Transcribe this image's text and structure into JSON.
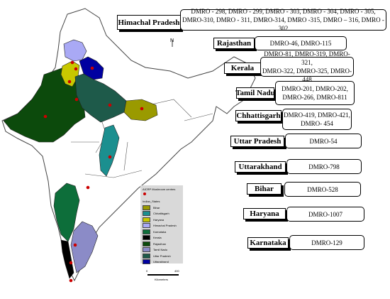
{
  "north_label": "N",
  "legend": {
    "centres_label": "AICRP Mushroom centres",
    "states_title": "Indian_States",
    "items": [
      {
        "name": "Bihar",
        "color": "#9a9a00"
      },
      {
        "name": "Chhattisgarh",
        "color": "#1b8f8f"
      },
      {
        "name": "Haryana",
        "color": "#c8c800"
      },
      {
        "name": "Himachal Pradesh",
        "color": "#a9a9f5"
      },
      {
        "name": "Karnataka",
        "color": "#0d6e3a"
      },
      {
        "name": "Kerala",
        "color": "#000000"
      },
      {
        "name": "Rajasthan",
        "color": "#0c4a0c"
      },
      {
        "name": "Tamil Nadu",
        "color": "#8b8bc7"
      },
      {
        "name": "Uttar Pradesh",
        "color": "#1e5a4a"
      },
      {
        "name": "Uttarakhand",
        "color": "#0000a0"
      }
    ]
  },
  "scale": {
    "start": "0",
    "end": "400",
    "unit": "Kilometers"
  },
  "centres": [
    {
      "state": "Himachal Pradesh",
      "codes": "DMRO - 298, DMRO - 299, DMRO - 303, DMRO - 304, DMRO - 305,\nDMRO-310, DMRO - 311, DMRO-314, DMRO -315, DMRO – 316, DMRO - 302"
    },
    {
      "state": "Rajasthan",
      "codes": "DMRO-46, DMRO-115"
    },
    {
      "state": "Kerala",
      "codes": "DMRO-81, DMRO-319, DMRO-321,\nDMRO-322, DMRO-325, DMRO-448"
    },
    {
      "state": "Tamil Nadu",
      "codes": "DMRO-201, DMRO-202,\nDMRO-266, DMRO-811"
    },
    {
      "state": "Chhattisgarh",
      "codes": "DMRO-419, DMRO-421,\nDMRO- 454"
    },
    {
      "state": "Uttar Pradesh",
      "codes": "DMRO-54"
    },
    {
      "state": "Uttarakhand",
      "codes": "DMRO-798"
    },
    {
      "state": "Bihar",
      "codes": "DMRO-528"
    },
    {
      "state": "Haryana",
      "codes": "DMRO-1007"
    },
    {
      "state": "Karnataka",
      "codes": "DMRO-129"
    }
  ]
}
